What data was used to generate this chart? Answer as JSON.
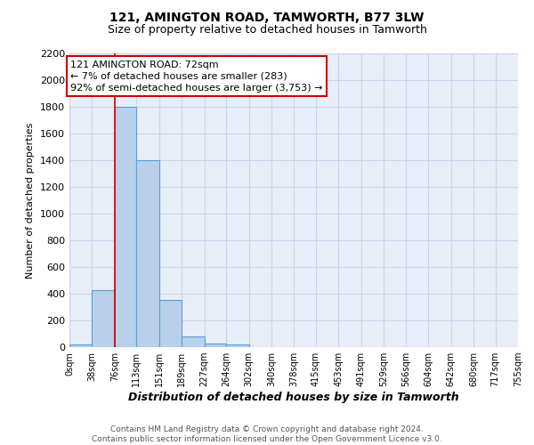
{
  "title1": "121, AMINGTON ROAD, TAMWORTH, B77 3LW",
  "title2": "Size of property relative to detached houses in Tamworth",
  "xlabel": "Distribution of detached houses by size in Tamworth",
  "ylabel": "Number of detached properties",
  "footnote": "Contains HM Land Registry data © Crown copyright and database right 2024.\nContains public sector information licensed under the Open Government Licence v3.0.",
  "bin_edges": [
    0,
    38,
    76,
    113,
    151,
    189,
    227,
    264,
    302,
    340,
    378,
    415,
    453,
    491,
    529,
    566,
    604,
    642,
    680,
    717,
    755
  ],
  "bar_heights": [
    20,
    425,
    1800,
    1400,
    355,
    80,
    30,
    20,
    0,
    0,
    0,
    0,
    0,
    0,
    0,
    0,
    0,
    0,
    0,
    0
  ],
  "bar_color": "#b8d0ea",
  "bar_edge_color": "#5a9fd4",
  "red_line_x": 76,
  "annotation_text": "121 AMINGTON ROAD: 72sqm\n← 7% of detached houses are smaller (283)\n92% of semi-detached houses are larger (3,753) →",
  "annotation_box_color": "#ffffff",
  "annotation_border_color": "#cc0000",
  "ylim": [
    0,
    2200
  ],
  "yticks": [
    0,
    200,
    400,
    600,
    800,
    1000,
    1200,
    1400,
    1600,
    1800,
    2000,
    2200
  ],
  "xtick_labels": [
    "0sqm",
    "38sqm",
    "76sqm",
    "113sqm",
    "151sqm",
    "189sqm",
    "227sqm",
    "264sqm",
    "302sqm",
    "340sqm",
    "378sqm",
    "415sqm",
    "453sqm",
    "491sqm",
    "529sqm",
    "566sqm",
    "604sqm",
    "642sqm",
    "680sqm",
    "717sqm",
    "755sqm"
  ],
  "grid_color": "#c8d4e8",
  "background_color": "#e8eef8"
}
